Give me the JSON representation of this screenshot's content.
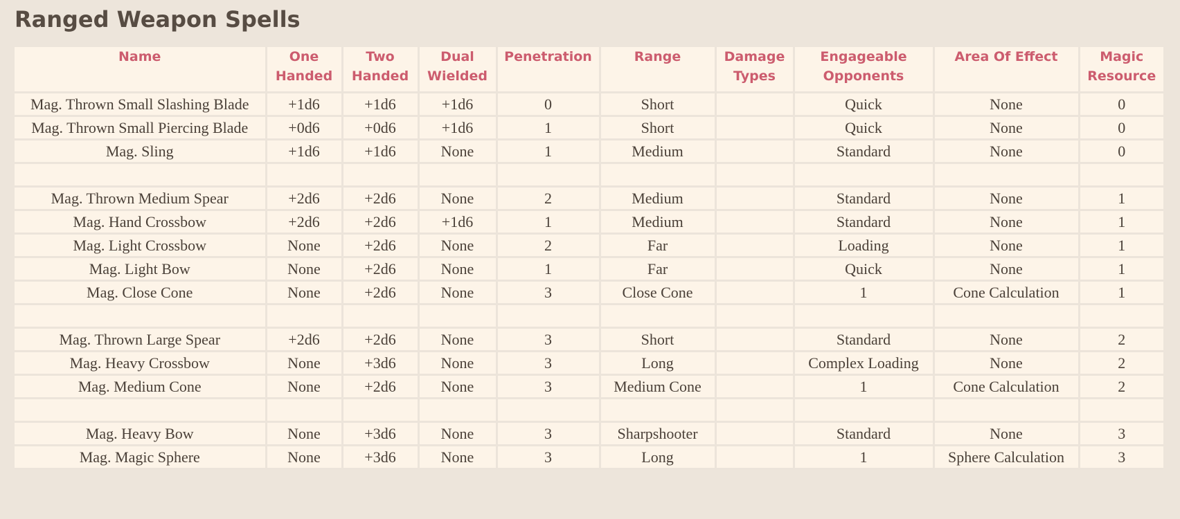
{
  "title": "Ranged Weapon Spells",
  "columns": [
    "Name",
    "One Handed",
    "Two Handed",
    "Dual Wielded",
    "Penetration",
    "Range",
    "Damage Types",
    "Engageable Opponents",
    "Area Of Effect",
    "Magic Resource"
  ],
  "rows": [
    [
      "Mag. Thrown Small Slashing Blade",
      "+1d6",
      "+1d6",
      "+1d6",
      "0",
      "Short",
      "",
      "Quick",
      "None",
      "0"
    ],
    [
      "Mag. Thrown Small Piercing Blade",
      "+0d6",
      "+0d6",
      "+1d6",
      "1",
      "Short",
      "",
      "Quick",
      "None",
      "0"
    ],
    [
      "Mag. Sling",
      "+1d6",
      "+1d6",
      "None",
      "1",
      "Medium",
      "",
      "Standard",
      "None",
      "0"
    ],
    [
      "",
      "",
      "",
      "",
      "",
      "",
      "",
      "",
      "",
      ""
    ],
    [
      "Mag. Thrown Medium Spear",
      "+2d6",
      "+2d6",
      "None",
      "2",
      "Medium",
      "",
      "Standard",
      "None",
      "1"
    ],
    [
      "Mag. Hand Crossbow",
      "+2d6",
      "+2d6",
      "+1d6",
      "1",
      "Medium",
      "",
      "Standard",
      "None",
      "1"
    ],
    [
      "Mag. Light Crossbow",
      "None",
      "+2d6",
      "None",
      "2",
      "Far",
      "",
      "Loading",
      "None",
      "1"
    ],
    [
      "Mag. Light Bow",
      "None",
      "+2d6",
      "None",
      "1",
      "Far",
      "",
      "Quick",
      "None",
      "1"
    ],
    [
      "Mag. Close Cone",
      "None",
      "+2d6",
      "None",
      "3",
      "Close Cone",
      "",
      "1",
      "Cone Calculation",
      "1"
    ],
    [
      "",
      "",
      "",
      "",
      "",
      "",
      "",
      "",
      "",
      ""
    ],
    [
      "Mag. Thrown Large Spear",
      "+2d6",
      "+2d6",
      "None",
      "3",
      "Short",
      "",
      "Standard",
      "None",
      "2"
    ],
    [
      "Mag. Heavy Crossbow",
      "None",
      "+3d6",
      "None",
      "3",
      "Long",
      "",
      "Complex Loading",
      "None",
      "2"
    ],
    [
      "Mag. Medium Cone",
      "None",
      "+2d6",
      "None",
      "3",
      "Medium Cone",
      "",
      "1",
      "Cone Calculation",
      "2"
    ],
    [
      "",
      "",
      "",
      "",
      "",
      "",
      "",
      "",
      "",
      ""
    ],
    [
      "Mag. Heavy Bow",
      "None",
      "+3d6",
      "None",
      "3",
      "Sharpshooter",
      "",
      "Standard",
      "None",
      "3"
    ],
    [
      "Mag. Magic Sphere",
      "None",
      "+3d6",
      "None",
      "3",
      "Long",
      "",
      "1",
      "Sphere Calculation",
      "3"
    ]
  ]
}
